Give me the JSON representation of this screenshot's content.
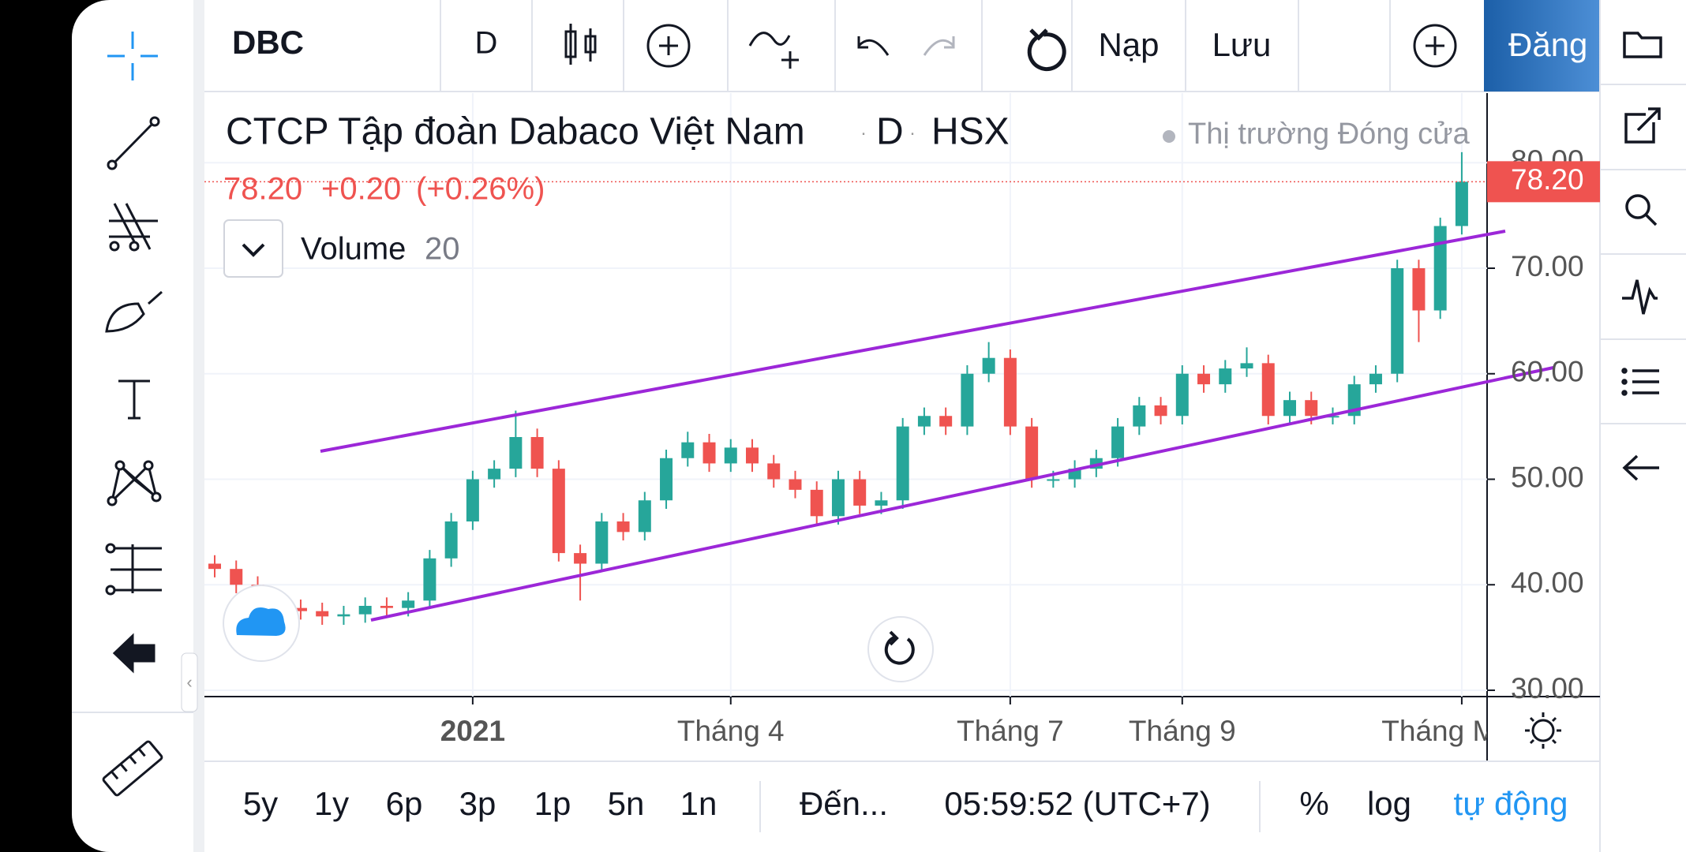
{
  "toolbar": {
    "symbol": "DBC",
    "interval": "D",
    "load": "Nạp",
    "save": "Lưu",
    "signin": "Đăng"
  },
  "legend": {
    "name": "CTCP Tập đoàn Dabaco Việt Nam",
    "interval": "D",
    "exchange": "HSX",
    "status": "Thị trường Đóng cửa",
    "price": "78.20",
    "change": "+0.20",
    "change_pct": "(+0.26%)",
    "indicator": "Volume",
    "indicator_length": "20"
  },
  "chart_data": {
    "type": "candlestick",
    "categories": [
      null,
      null,
      null,
      null,
      null,
      null,
      null,
      null,
      null,
      null,
      null,
      null,
      "2021",
      null,
      null,
      null,
      null,
      null,
      null,
      null,
      null,
      null,
      null,
      null,
      "Tháng 4",
      null,
      null,
      null,
      null,
      null,
      null,
      null,
      null,
      null,
      null,
      null,
      null,
      "Tháng 7",
      null,
      null,
      null,
      null,
      null,
      null,
      null,
      "Tháng 9",
      null,
      null,
      null,
      null,
      null,
      null,
      null,
      null,
      null,
      null,
      null,
      null,
      "Tháng Mười"
    ],
    "open": [
      42,
      41.5,
      40,
      38.5,
      37.8,
      37.5,
      37,
      37.2,
      38,
      37.8,
      38.5,
      42.5,
      46,
      50,
      51,
      54,
      51,
      43,
      42,
      46,
      45,
      48,
      52,
      53.5,
      51.5,
      53,
      51.5,
      50,
      49,
      46.5,
      50,
      47.5,
      48,
      55,
      56,
      55,
      60,
      61.5,
      55,
      50,
      50,
      51,
      52,
      55,
      57,
      56,
      60,
      59,
      60.5,
      61,
      56,
      57.5,
      56,
      56,
      59,
      60,
      70,
      66,
      74
    ],
    "high": [
      42.8,
      42.3,
      40.8,
      39.3,
      38.6,
      38.3,
      38,
      38.8,
      38.8,
      39.3,
      43.3,
      46.8,
      50.8,
      51.8,
      56.5,
      54.8,
      51.8,
      43.8,
      46.8,
      46.8,
      48.8,
      52.8,
      54.5,
      54.3,
      53.8,
      53.8,
      52.3,
      50.8,
      49.8,
      50.8,
      50.8,
      48.8,
      55.8,
      56.8,
      56.8,
      60.8,
      63,
      62.3,
      55.8,
      50.8,
      51.8,
      52.8,
      55.8,
      57.8,
      57.8,
      60.8,
      60.8,
      61.3,
      62.5,
      61.8,
      58.3,
      58.3,
      56.8,
      59.8,
      60.8,
      70.8,
      70.8,
      74.8,
      81
    ],
    "low": [
      40.7,
      39.2,
      37.7,
      37,
      36.7,
      36.2,
      36.2,
      36.4,
      37,
      37,
      37.7,
      41.7,
      45.2,
      49.2,
      50.2,
      50.2,
      42.2,
      38.5,
      41.2,
      44.2,
      44.2,
      47.2,
      51.2,
      50.7,
      50.7,
      50.7,
      49.2,
      48.2,
      45.7,
      45.7,
      46.7,
      46.7,
      47.2,
      54.2,
      54.2,
      54.2,
      59.2,
      54.2,
      49.2,
      49.2,
      49.2,
      50.2,
      51.2,
      54.2,
      55.2,
      55.2,
      58.2,
      58.2,
      59.7,
      55.2,
      55.2,
      55.2,
      55.2,
      55.2,
      58.2,
      59.2,
      63,
      65.2,
      73.2
    ],
    "close": [
      41.5,
      40,
      38.5,
      37.8,
      37.5,
      37,
      37.2,
      38,
      37.8,
      38.5,
      42.5,
      46,
      50,
      51,
      54,
      51,
      43,
      42,
      46,
      45,
      48,
      52,
      53.5,
      51.5,
      53,
      51.5,
      50,
      49,
      46.5,
      50,
      47.5,
      48,
      55,
      56,
      55,
      60,
      61.5,
      55,
      50,
      50,
      51,
      52,
      55,
      57,
      56,
      60,
      59,
      60.5,
      61,
      56,
      57.5,
      56,
      56,
      59,
      60,
      70,
      66,
      74,
      78.2
    ],
    "up_color": "#26a69a",
    "down_color": "#ef5350",
    "ylim": [
      29.4,
      86.6
    ],
    "yticks": [
      {
        "value": 30,
        "label": "30.00"
      },
      {
        "value": 40,
        "label": "40.00"
      },
      {
        "value": 50,
        "label": "50.00"
      },
      {
        "value": 60,
        "label": "60.00"
      },
      {
        "value": 70,
        "label": "70.00"
      },
      {
        "value": 80,
        "label": "80.00"
      }
    ],
    "grid": true,
    "last_price": {
      "value": 78.2,
      "label": "78.20"
    }
  },
  "ranges": [
    "5y",
    "1y",
    "6p",
    "3p",
    "1p",
    "5n",
    "1n"
  ],
  "goto": "Đến...",
  "time": "05:59:52 (UTC+7)",
  "scale": {
    "percent": "%",
    "log": "log",
    "auto": "tự động"
  }
}
